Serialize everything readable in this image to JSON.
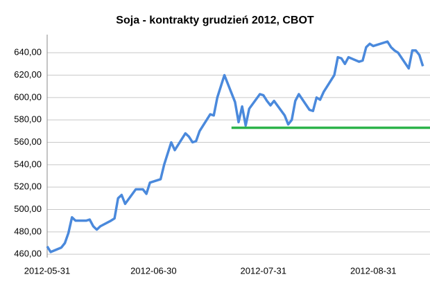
{
  "chart_data": {
    "type": "line",
    "title": "Soja - kontrakty grudzień 2012, CBOT",
    "x": [
      "2012-05-31",
      "2012-06-01",
      "2012-06-04",
      "2012-06-05",
      "2012-06-06",
      "2012-06-07",
      "2012-06-08",
      "2012-06-11",
      "2012-06-12",
      "2012-06-13",
      "2012-06-14",
      "2012-06-15",
      "2012-06-18",
      "2012-06-19",
      "2012-06-20",
      "2012-06-21",
      "2012-06-22",
      "2012-06-25",
      "2012-06-26",
      "2012-06-27",
      "2012-06-28",
      "2012-06-29",
      "2012-07-02",
      "2012-07-03",
      "2012-07-05",
      "2012-07-06",
      "2012-07-09",
      "2012-07-10",
      "2012-07-11",
      "2012-07-12",
      "2012-07-13",
      "2012-07-16",
      "2012-07-17",
      "2012-07-18",
      "2012-07-19",
      "2012-07-20",
      "2012-07-23",
      "2012-07-24",
      "2012-07-25",
      "2012-07-26",
      "2012-07-27",
      "2012-07-30",
      "2012-07-31",
      "2012-08-01",
      "2012-08-02",
      "2012-08-03",
      "2012-08-06",
      "2012-08-07",
      "2012-08-08",
      "2012-08-09",
      "2012-08-10",
      "2012-08-13",
      "2012-08-14",
      "2012-08-15",
      "2012-08-16",
      "2012-08-17",
      "2012-08-20",
      "2012-08-21",
      "2012-08-22",
      "2012-08-23",
      "2012-08-24",
      "2012-08-27",
      "2012-08-28",
      "2012-08-29",
      "2012-08-30",
      "2012-08-31",
      "2012-09-04",
      "2012-09-05",
      "2012-09-06",
      "2012-09-07",
      "2012-09-10",
      "2012-09-11",
      "2012-09-12",
      "2012-09-13",
      "2012-09-14"
    ],
    "series": [
      {
        "name": "Soja",
        "color": "#4a89dc",
        "values": [
          467,
          462,
          466,
          470,
          479,
          493,
          490,
          490,
          491,
          485,
          482,
          485,
          490,
          492,
          510,
          513,
          505,
          518,
          518,
          518,
          514,
          524,
          527,
          540,
          560,
          553,
          568,
          565,
          560,
          561,
          570,
          585,
          584,
          600,
          610,
          620,
          596,
          578,
          592,
          575,
          590,
          603,
          602,
          597,
          593,
          597,
          584,
          576,
          580,
          597,
          603,
          589,
          588,
          600,
          598,
          605,
          620,
          636,
          635,
          630,
          636,
          632,
          633,
          645,
          648,
          646,
          650,
          645,
          642,
          640,
          626,
          642,
          642,
          638,
          628
        ]
      }
    ],
    "reference_line": {
      "value": 573,
      "x_start": "2012-07-22",
      "color": "#2db34a"
    },
    "xlim": [
      "2012-05-31",
      "2012-09-16"
    ],
    "xticks": [
      "2012-05-31",
      "2012-06-30",
      "2012-07-31",
      "2012-08-31"
    ],
    "ylim": [
      457,
      650
    ],
    "yticks": [
      {
        "value": 460,
        "label": "460,00"
      },
      {
        "value": 480,
        "label": "480,00"
      },
      {
        "value": 500,
        "label": "500,00"
      },
      {
        "value": 520,
        "label": "520,00"
      },
      {
        "value": 540,
        "label": "540,00"
      },
      {
        "value": 560,
        "label": "560,00"
      },
      {
        "value": 580,
        "label": "580,00"
      },
      {
        "value": 600,
        "label": "600,00"
      },
      {
        "value": 620,
        "label": "620,00"
      },
      {
        "value": 640,
        "label": "640,00"
      }
    ],
    "grid": true
  }
}
